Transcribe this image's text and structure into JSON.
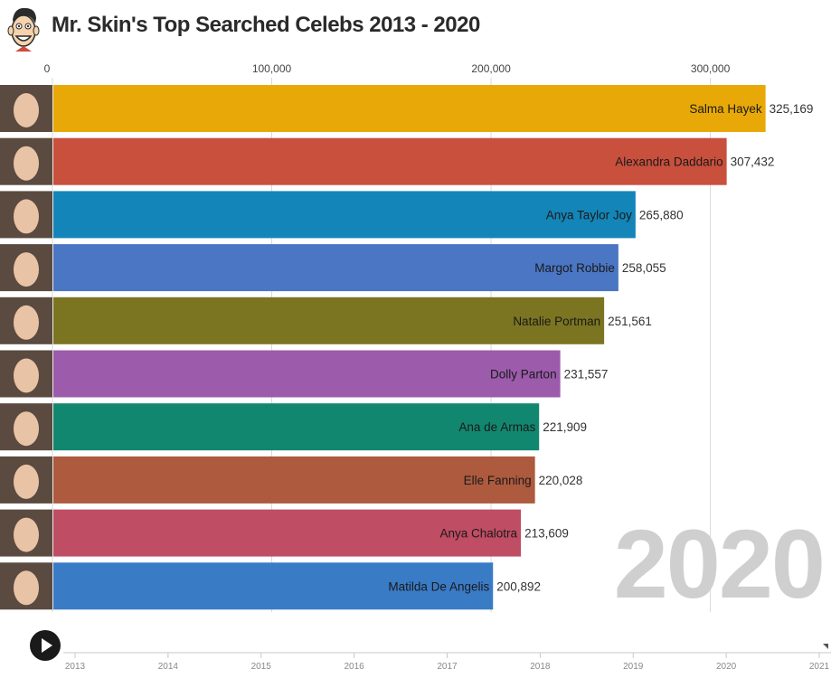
{
  "header": {
    "title": "Mr. Skin's Top Searched Celebs 2013 - 2020",
    "logo_icon": "cartoon-face-icon"
  },
  "chart_data": {
    "type": "bar",
    "orientation": "horizontal",
    "title": "Mr. Skin's Top Searched Celebs 2013 - 2020",
    "xlim": [
      0,
      355000
    ],
    "x_ticks": [
      0,
      100000,
      200000,
      300000
    ],
    "x_tick_labels": [
      "0",
      "100,000",
      "200,000",
      "300,000"
    ],
    "grid": true,
    "categories": [
      "Salma Hayek",
      "Alexandra Daddario",
      "Anya Taylor Joy",
      "Margot Robbie",
      "Natalie Portman",
      "Dolly Parton",
      "Ana de Armas",
      "Elle Fanning",
      "Anya Chalotra",
      "Matilda De Angelis"
    ],
    "values": [
      325169,
      307432,
      265880,
      258055,
      251561,
      231557,
      221909,
      220028,
      213609,
      200892
    ],
    "value_labels": [
      "325,169",
      "307,432",
      "265,880",
      "258,055",
      "251,561",
      "231,557",
      "221,909",
      "220,028",
      "213,609",
      "200,892"
    ],
    "colors": [
      "#e8a908",
      "#c9503d",
      "#1485b8",
      "#4a76c4",
      "#7b7421",
      "#9c5bab",
      "#12876f",
      "#ad5a3e",
      "#bf4d63",
      "#3a7bc6"
    ],
    "current_year": "2020"
  },
  "timeline": {
    "labels": [
      "2013",
      "2014",
      "2015",
      "2016",
      "2017",
      "2018",
      "2019",
      "2020",
      "2021"
    ],
    "play_icon": "play-icon"
  }
}
